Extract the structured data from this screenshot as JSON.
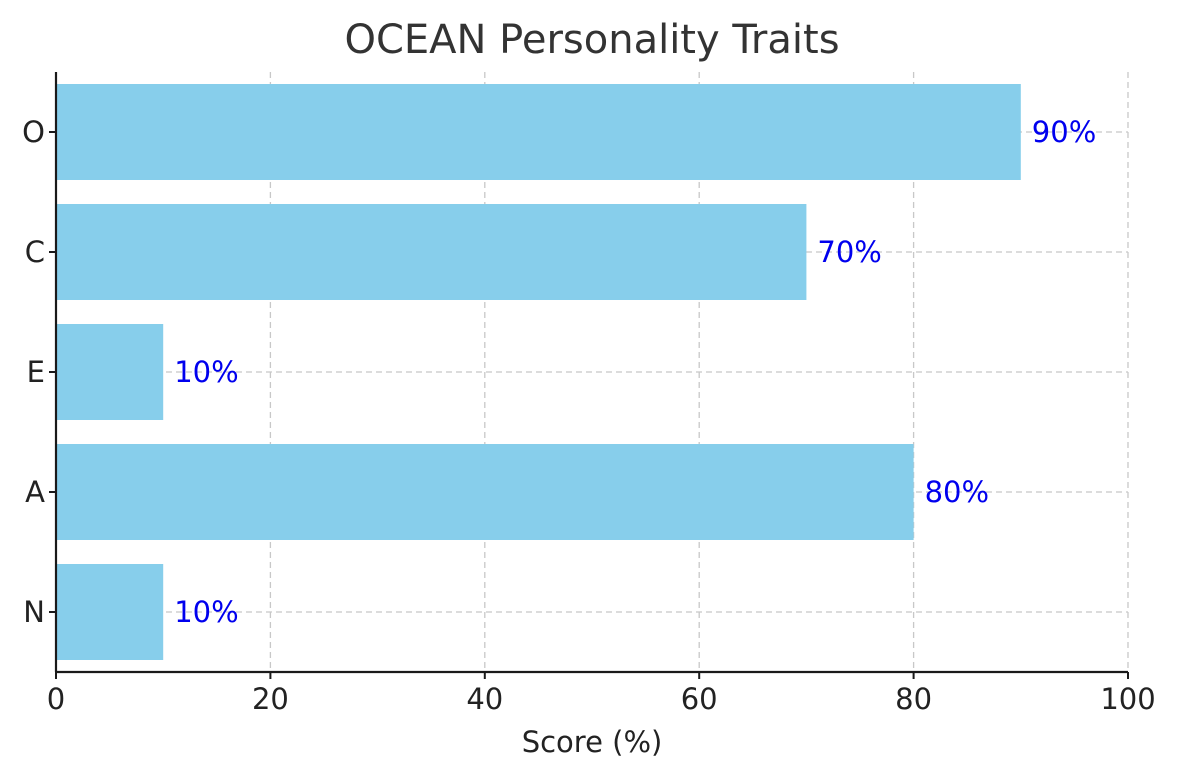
{
  "chart_data": {
    "type": "bar",
    "orientation": "horizontal",
    "title": "OCEAN Personality Traits",
    "xlabel": "Score (%)",
    "ylabel": "",
    "categories": [
      "O",
      "C",
      "E",
      "A",
      "N"
    ],
    "values": [
      90,
      70,
      10,
      80,
      10
    ],
    "data_labels": [
      "90%",
      "70%",
      "10%",
      "80%",
      "10%"
    ],
    "xlim": [
      0,
      100
    ],
    "xticks": [
      0,
      20,
      40,
      60,
      80,
      100
    ],
    "xtick_labels": [
      "0",
      "20",
      "40",
      "60",
      "80",
      "100"
    ],
    "grid": true,
    "bar_color": "#87CEEB",
    "label_color": "#0000EE"
  }
}
